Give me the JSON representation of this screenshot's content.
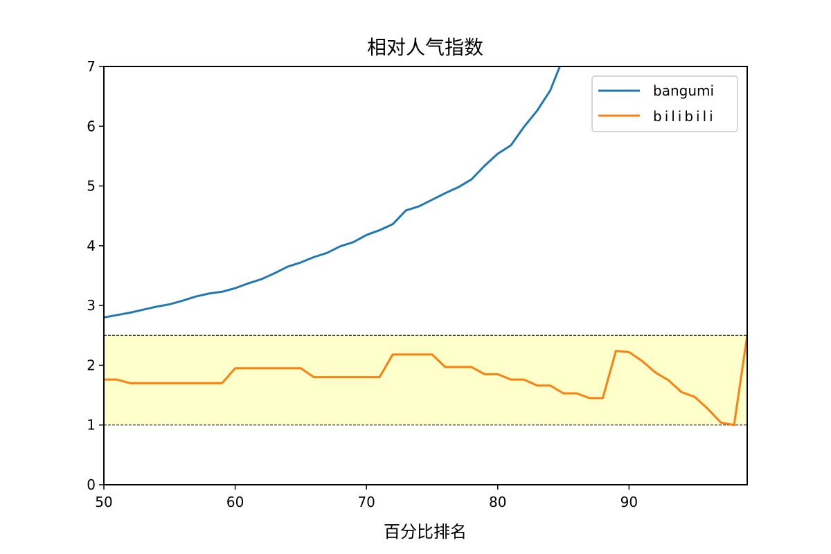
{
  "chart_data": {
    "type": "line",
    "title": "相对人气指数",
    "xlabel": "百分比排名",
    "ylabel": "",
    "xlim": [
      50,
      99
    ],
    "ylim": [
      0,
      7
    ],
    "xticks": [
      50,
      60,
      70,
      80,
      90
    ],
    "yticks": [
      0,
      1,
      2,
      3,
      4,
      5,
      6,
      7
    ],
    "band": {
      "from": 1,
      "to": 2.5,
      "color": "#ffffcc"
    },
    "legend_position": "top-right",
    "series": [
      {
        "name": "bangumi",
        "color": "#1f77b4",
        "x": [
          50,
          51,
          52,
          53,
          54,
          55,
          56,
          57,
          58,
          59,
          60,
          61,
          62,
          63,
          64,
          65,
          66,
          67,
          68,
          69,
          70,
          71,
          72,
          73,
          74,
          75,
          76,
          77,
          78,
          79,
          80,
          81,
          82,
          83,
          84,
          85
        ],
        "values": [
          2.8,
          2.84,
          2.88,
          2.93,
          2.98,
          3.02,
          3.08,
          3.15,
          3.2,
          3.23,
          3.29,
          3.37,
          3.44,
          3.54,
          3.65,
          3.72,
          3.81,
          3.88,
          3.99,
          4.06,
          4.18,
          4.26,
          4.36,
          4.59,
          4.66,
          4.77,
          4.88,
          4.98,
          5.11,
          5.34,
          5.54,
          5.68,
          5.99,
          6.26,
          6.6,
          7.15
        ]
      },
      {
        "name": "bilibili",
        "color": "#ff7f0e",
        "x": [
          50,
          51,
          52,
          53,
          54,
          55,
          56,
          57,
          58,
          59,
          60,
          61,
          62,
          63,
          64,
          65,
          66,
          67,
          68,
          69,
          70,
          71,
          72,
          73,
          74,
          75,
          76,
          77,
          78,
          79,
          80,
          81,
          82,
          83,
          84,
          85,
          86,
          87,
          88,
          89,
          90,
          91,
          92,
          93,
          94,
          95,
          96,
          97,
          98,
          99
        ],
        "values": [
          1.76,
          1.76,
          1.7,
          1.7,
          1.7,
          1.7,
          1.7,
          1.7,
          1.7,
          1.7,
          1.95,
          1.95,
          1.95,
          1.95,
          1.95,
          1.95,
          1.8,
          1.8,
          1.8,
          1.8,
          1.8,
          1.8,
          2.18,
          2.18,
          2.18,
          2.18,
          1.97,
          1.97,
          1.97,
          1.85,
          1.85,
          1.76,
          1.76,
          1.66,
          1.66,
          1.53,
          1.53,
          1.45,
          1.45,
          2.24,
          2.22,
          2.07,
          1.88,
          1.75,
          1.55,
          1.47,
          1.27,
          1.04,
          1.0,
          2.5
        ]
      }
    ]
  }
}
